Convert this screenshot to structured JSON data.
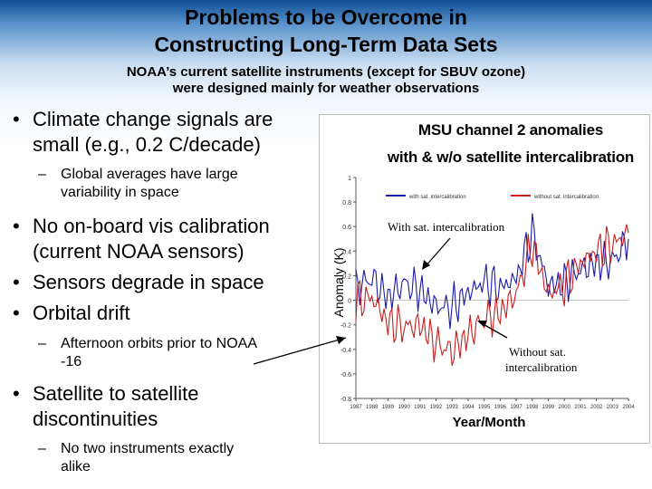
{
  "slide": {
    "title_line1": "Problems to be Overcome in",
    "title_line2": "Constructing Long-Term Data Sets",
    "subtitle_line1": "NOAA’s current satellite instruments (except for SBUV ozone)",
    "subtitle_line2": "were designed mainly for weather observations"
  },
  "bullets": {
    "climate_l1": "Climate change signals are",
    "climate_l2": "small (e.g., 0.2 C/decade)",
    "global_l1": "Global averages have large",
    "global_l2": "variability in space",
    "vis_l1": "No on-board vis calibration",
    "vis_l2": "(current NOAA sensors)",
    "degrade": "Sensors degrade in space",
    "drift": "Orbital drift",
    "afternoon_l1": "Afternoon orbits prior to NOAA",
    "afternoon_l2": "-16",
    "sat_l1": "Satellite to satellite",
    "sat_l2": "discontinuities",
    "instruments_l1": "No two instruments exactly",
    "instruments_l2": "alike",
    "bullet_glyph": "•",
    "dash_glyph": "–"
  },
  "chart_data": {
    "type": "line",
    "title_line1": "MSU channel 2 anomalies",
    "title_line2": "with & w/o satellite intercalibration",
    "xlabel": "Year/Month",
    "ylabel": "Anomaly (K)",
    "ylim": [
      -0.8,
      1.0
    ],
    "yticks": [
      "1",
      "0.8",
      "0.6",
      "0.4",
      "0.2",
      "0",
      "-0.2",
      "-0.4",
      "-0.6",
      "-0.8"
    ],
    "x": [
      1987,
      1988,
      1989,
      1990,
      1991,
      1992,
      1993,
      1994,
      1995,
      1996,
      1997,
      1998,
      1999,
      2000,
      2001,
      2002,
      2003,
      2004
    ],
    "series": [
      {
        "name": "with sat. intercalibration",
        "color": "#1a1aa8",
        "values": [
          0.1,
          0.18,
          0.02,
          0.14,
          0.08,
          -0.05,
          -0.06,
          0.06,
          0.15,
          0.1,
          0.18,
          0.55,
          0.12,
          0.14,
          0.25,
          0.3,
          0.32,
          0.5
        ]
      },
      {
        "name": "without sat. intercalibration",
        "color": "#c81e1e",
        "values": [
          0.0,
          0.02,
          -0.18,
          -0.22,
          -0.2,
          -0.35,
          -0.42,
          -0.28,
          -0.15,
          -0.1,
          0.05,
          0.45,
          0.05,
          0.12,
          0.3,
          0.4,
          0.45,
          0.55
        ]
      }
    ],
    "annotations": {
      "with_label": "With sat. intercalibration",
      "without_label_l1": "Without sat.",
      "without_label_l2": "intercalibration"
    },
    "legend_position": "top"
  },
  "colors": {
    "header_blue": "#0d4f96",
    "series_with": "#1a1aa8",
    "series_without": "#c81e1e"
  }
}
